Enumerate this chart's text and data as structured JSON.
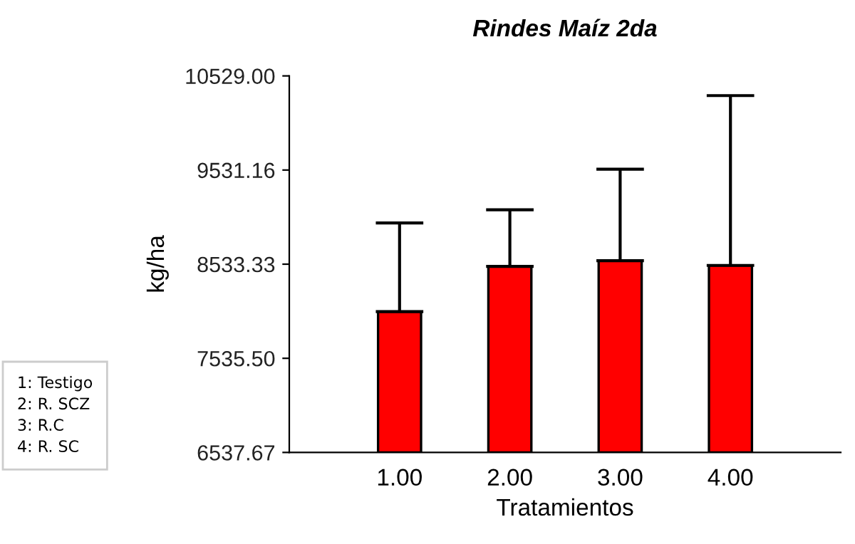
{
  "chart_data": {
    "type": "bar",
    "title": "Rindes Maíz 2da",
    "xlabel": "Tratamientos",
    "ylabel": "kg/ha",
    "categories": [
      "1.00",
      "2.00",
      "3.00",
      "4.00"
    ],
    "values": [
      8030,
      8510,
      8570,
      8520
    ],
    "errors": [
      [
        8030,
        8970
      ],
      [
        8510,
        9110
      ],
      [
        8570,
        9540
      ],
      [
        8520,
        10320
      ]
    ],
    "color": "#ff0000",
    "ylim": [
      6537.67,
      10529.0
    ],
    "yticks": [
      {
        "value": 6537.67,
        "label": "6537.67"
      },
      {
        "value": 7535.5,
        "label": "7535.50"
      },
      {
        "value": 8533.33,
        "label": "8533.33"
      },
      {
        "value": 9531.16,
        "label": "9531.16"
      },
      {
        "value": 10529.0,
        "label": "10529.00"
      }
    ],
    "grid": false,
    "annotations": [
      "1: Testigo\n2: R. SCZ\n3: R.C\n4: R. SC"
    ]
  }
}
